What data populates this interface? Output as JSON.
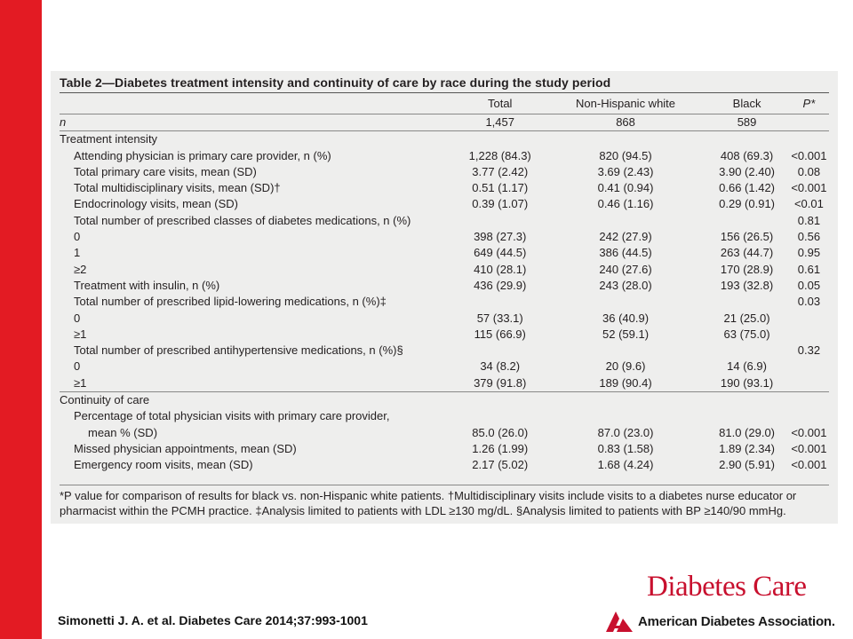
{
  "table": {
    "title_prefix": "Table 2",
    "title_text": "—Diabetes treatment intensity and continuity of care by race during the study period",
    "headers": [
      "",
      "Total",
      "Non-Hispanic white",
      "Black",
      "P*"
    ],
    "rows": [
      {
        "label": "n",
        "indent": 0,
        "total": "1,457",
        "nhw": "868",
        "black": "589",
        "p": "",
        "sep_after": true
      },
      {
        "label": "Treatment intensity",
        "indent": 0,
        "total": "",
        "nhw": "",
        "black": "",
        "p": ""
      },
      {
        "label": "Attending physician is primary care provider, n (%)",
        "indent": 1,
        "total": "1,228 (84.3)",
        "nhw": "820 (94.5)",
        "black": "408 (69.3)",
        "p": "<0.001"
      },
      {
        "label": "Total primary care visits, mean (SD)",
        "indent": 1,
        "total": "3.77 (2.42)",
        "nhw": "3.69 (2.43)",
        "black": "3.90 (2.40)",
        "p": "0.08"
      },
      {
        "label": "Total multidisciplinary visits, mean (SD)†",
        "indent": 1,
        "total": "0.51 (1.17)",
        "nhw": "0.41 (0.94)",
        "black": "0.66 (1.42)",
        "p": "<0.001"
      },
      {
        "label": "Endocrinology visits, mean (SD)",
        "indent": 1,
        "total": "0.39 (1.07)",
        "nhw": "0.46 (1.16)",
        "black": "0.29 (0.91)",
        "p": "<0.01"
      },
      {
        "label": "Total number of prescribed classes of diabetes medications, n (%)",
        "indent": 1,
        "total": "",
        "nhw": "",
        "black": "",
        "p": "0.81"
      },
      {
        "label": "0",
        "indent": 1,
        "total": "398 (27.3)",
        "nhw": "242 (27.9)",
        "black": "156 (26.5)",
        "p": "0.56"
      },
      {
        "label": "1",
        "indent": 1,
        "total": "649 (44.5)",
        "nhw": "386 (44.5)",
        "black": "263 (44.7)",
        "p": "0.95"
      },
      {
        "label": "≥2",
        "indent": 1,
        "total": "410 (28.1)",
        "nhw": "240 (27.6)",
        "black": "170 (28.9)",
        "p": "0.61"
      },
      {
        "label": "Treatment with insulin, n (%)",
        "indent": 1,
        "total": "436 (29.9)",
        "nhw": "243 (28.0)",
        "black": "193 (32.8)",
        "p": "0.05"
      },
      {
        "label": "Total number of prescribed lipid-lowering medications, n (%)‡",
        "indent": 1,
        "total": "",
        "nhw": "",
        "black": "",
        "p": "0.03"
      },
      {
        "label": "0",
        "indent": 1,
        "total": "57 (33.1)",
        "nhw": "36 (40.9)",
        "black": "21 (25.0)",
        "p": ""
      },
      {
        "label": "≥1",
        "indent": 1,
        "total": "115 (66.9)",
        "nhw": "52 (59.1)",
        "black": "63 (75.0)",
        "p": ""
      },
      {
        "label": "Total number of prescribed antihypertensive medications, n (%)§",
        "indent": 1,
        "total": "",
        "nhw": "",
        "black": "",
        "p": "0.32"
      },
      {
        "label": "0",
        "indent": 1,
        "total": "34 (8.2)",
        "nhw": "20 (9.6)",
        "black": "14 (6.9)",
        "p": ""
      },
      {
        "label": "≥1",
        "indent": 1,
        "total": "379 (91.8)",
        "nhw": "189 (90.4)",
        "black": "190 (93.1)",
        "p": "",
        "sep_after": true
      },
      {
        "label": "Continuity of care",
        "indent": 0,
        "total": "",
        "nhw": "",
        "black": "",
        "p": ""
      },
      {
        "label": "Percentage of total physician visits with primary care provider,",
        "indent": 1,
        "total": "",
        "nhw": "",
        "black": "",
        "p": ""
      },
      {
        "label": "mean % (SD)",
        "indent": 2,
        "total": "85.0 (26.0)",
        "nhw": "87.0 (23.0)",
        "black": "81.0 (29.0)",
        "p": "<0.001"
      },
      {
        "label": "Missed physician appointments, mean (SD)",
        "indent": 1,
        "total": "1.26 (1.99)",
        "nhw": "0.83 (1.58)",
        "black": "1.89 (2.34)",
        "p": "<0.001"
      },
      {
        "label": "Emergency room visits, mean (SD)",
        "indent": 1,
        "total": "2.17 (5.02)",
        "nhw": "1.68 (4.24)",
        "black": "2.90 (5.91)",
        "p": "<0.001"
      }
    ],
    "footnote": "*P value for comparison of results for black vs. non-Hispanic white patients. †Multidisciplinary visits include visits to a diabetes nurse educator or pharmacist within the PCMH practice. ‡Analysis limited to patients with LDL ≥130 mg/dL. §Analysis limited to patients with BP ≥140/90 mmHg."
  },
  "citation": "Simonetti J. A. et al. Diabetes Care 2014;37:993-1001",
  "branding": {
    "journal": "Diabetes Care",
    "association": "American Diabetes Association."
  },
  "colors": {
    "accent_red": "#e31b23",
    "panel_bg": "#eeeeed",
    "journal_red": "#c8102e"
  },
  "icons": [
    "ada-logo-icon"
  ]
}
